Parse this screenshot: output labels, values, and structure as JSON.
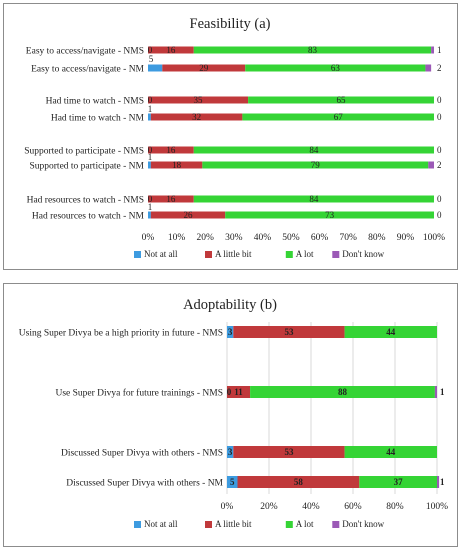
{
  "colors": {
    "not_at_all": "#3d9be0",
    "a_little_bit": "#c0393b",
    "a_lot": "#35d435",
    "dont_know": "#9b59b6"
  },
  "chart_data": [
    {
      "type": "bar",
      "orientation": "horizontal",
      "stacked": true,
      "title": "Feasibility (a)",
      "categories": [
        "Easy to access/navigate - NMS",
        "Easy to access/navigate - NM",
        "Had time to watch - NMS",
        "Had time to watch - NM",
        "Supported to participate - NMS",
        "Supported to participate - NM",
        "Had resources to watch - NMS",
        "Had resources to watch - NM"
      ],
      "series": [
        {
          "name": "Not at all",
          "values": [
            0,
            5,
            0,
            1,
            0,
            1,
            0,
            1
          ]
        },
        {
          "name": "A little bit",
          "values": [
            16,
            29,
            35,
            32,
            16,
            18,
            16,
            26
          ]
        },
        {
          "name": "A lot",
          "values": [
            83,
            63,
            65,
            67,
            84,
            79,
            84,
            73
          ]
        },
        {
          "name": "Don't know",
          "values": [
            1,
            2,
            0,
            0,
            0,
            2,
            0,
            0
          ]
        }
      ],
      "xlim": [
        0,
        100
      ],
      "x_ticks": [
        "0%",
        "10%",
        "20%",
        "30%",
        "40%",
        "50%",
        "60%",
        "70%",
        "80%",
        "90%",
        "100%"
      ],
      "legend": "bottom"
    },
    {
      "type": "bar",
      "orientation": "horizontal",
      "stacked": true,
      "title": "Adoptability (b)",
      "categories": [
        "Using Super Divya be a high priority in future - NMS",
        "Use Super Divya for future trainings - NMS",
        "Discussed Super Divya with others - NMS",
        "Discussed Super Divya with others - NM"
      ],
      "series": [
        {
          "name": "Not at all",
          "values": [
            3,
            0,
            3,
            5
          ]
        },
        {
          "name": "A little bit",
          "values": [
            53,
            11,
            53,
            58
          ]
        },
        {
          "name": "A lot",
          "values": [
            44,
            88,
            44,
            37
          ]
        },
        {
          "name": "Don't know",
          "values": [
            0,
            1,
            0,
            1
          ]
        }
      ],
      "xlim": [
        0,
        100
      ],
      "x_ticks": [
        "0%",
        "20%",
        "40%",
        "60%",
        "80%",
        "100%"
      ],
      "legend": "bottom"
    }
  ]
}
